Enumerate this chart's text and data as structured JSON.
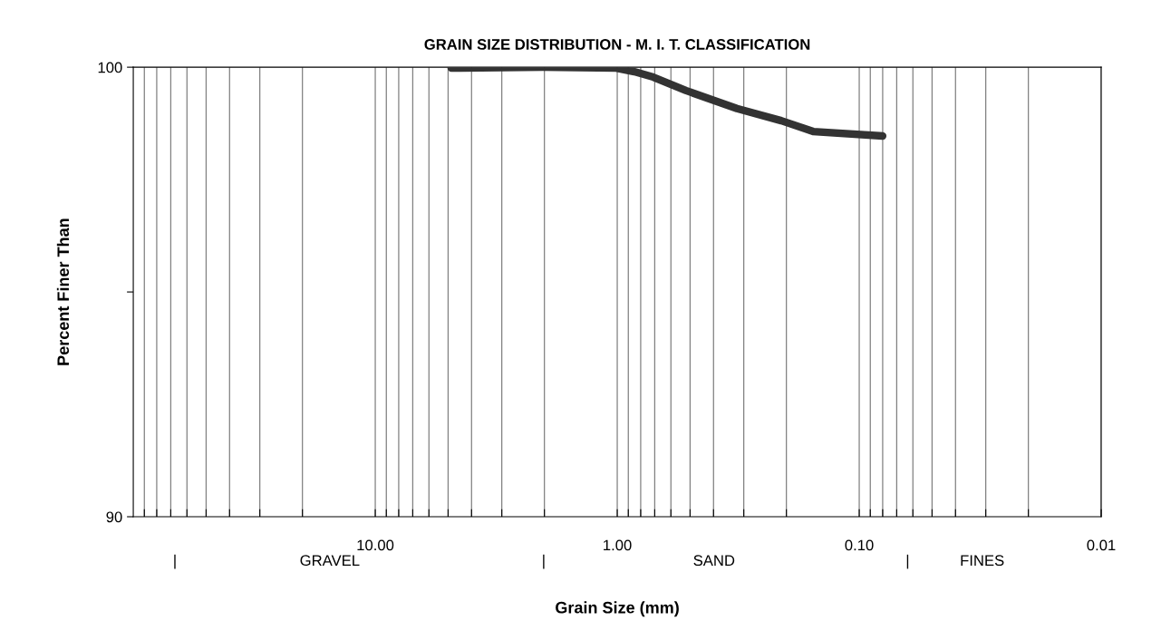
{
  "chart_data": {
    "type": "line",
    "title": "GRAIN SIZE DISTRIBUTION - M. I. T. CLASSIFICATION",
    "xlabel": "Grain Size (mm)",
    "ylabel": "Percent Finer Than",
    "log": "x",
    "xlim": [
      100,
      0.01
    ],
    "ylim": [
      90,
      100
    ],
    "xticks": [
      {
        "value": 90,
        "label": null
      },
      {
        "value": 80,
        "label": null
      },
      {
        "value": 70,
        "label": null
      },
      {
        "value": 60,
        "label": null
      },
      {
        "value": 50,
        "label": null
      },
      {
        "value": 40,
        "label": null
      },
      {
        "value": 30,
        "label": null
      },
      {
        "value": 20,
        "label": null
      },
      {
        "value": 10,
        "label": "10.00"
      },
      {
        "value": 9,
        "label": null
      },
      {
        "value": 8,
        "label": null
      },
      {
        "value": 7,
        "label": null
      },
      {
        "value": 6,
        "label": null
      },
      {
        "value": 5,
        "label": null
      },
      {
        "value": 4,
        "label": null
      },
      {
        "value": 3,
        "label": null
      },
      {
        "value": 2,
        "label": null
      },
      {
        "value": 1,
        "label": "1.00"
      },
      {
        "value": 0.9,
        "label": null
      },
      {
        "value": 0.8,
        "label": null
      },
      {
        "value": 0.7,
        "label": null
      },
      {
        "value": 0.6,
        "label": null
      },
      {
        "value": 0.5,
        "label": null
      },
      {
        "value": 0.4,
        "label": null
      },
      {
        "value": 0.3,
        "label": null
      },
      {
        "value": 0.2,
        "label": null
      },
      {
        "value": 0.1,
        "label": "0.10"
      },
      {
        "value": 0.09,
        "label": null
      },
      {
        "value": 0.08,
        "label": null
      },
      {
        "value": 0.07,
        "label": null
      },
      {
        "value": 0.06,
        "label": null
      },
      {
        "value": 0.05,
        "label": null
      },
      {
        "value": 0.04,
        "label": null
      },
      {
        "value": 0.03,
        "label": null
      },
      {
        "value": 0.02,
        "label": null
      },
      {
        "value": 0.01,
        "label": "0.01"
      }
    ],
    "yticks": [
      90,
      {
        "value": 95,
        "label": null
      },
      100
    ],
    "grid": "x",
    "marker": "none",
    "line_style": "solid",
    "x": [
      4.85,
      2.03,
      1.01,
      0.85,
      0.71,
      0.52,
      0.32,
      0.21,
      0.155,
      0.08
    ],
    "series": [
      {
        "color": "#333333",
        "values": [
          99.98,
          100.0,
          99.98,
          99.9,
          99.78,
          99.48,
          99.08,
          98.81,
          98.57,
          98.47
        ]
      }
    ],
    "annotations": [
      "|",
      "GRAVEL",
      "|",
      "SAND",
      "|",
      "FINES"
    ]
  }
}
